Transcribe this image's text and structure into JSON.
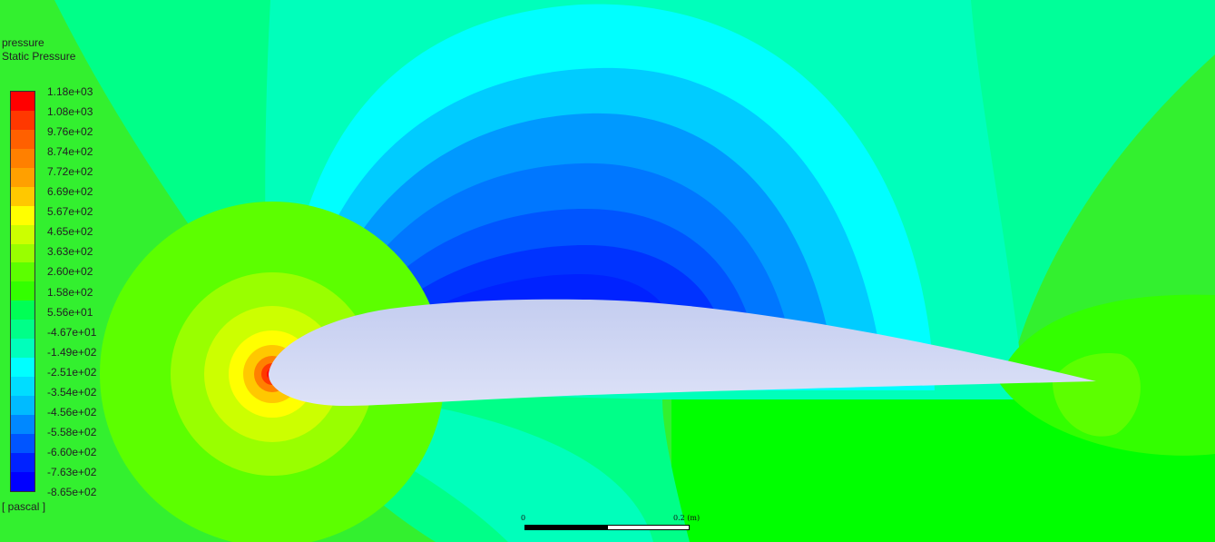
{
  "legend": {
    "variable": "pressure",
    "quantity": "Static Pressure",
    "units": "[ pascal ]",
    "labels": [
      "1.18e+03",
      "1.08e+03",
      "9.76e+02",
      "8.74e+02",
      "7.72e+02",
      "6.69e+02",
      "5.67e+02",
      "4.65e+02",
      "3.63e+02",
      "2.60e+02",
      "1.58e+02",
      "5.56e+01",
      "-4.67e+01",
      "-1.49e+02",
      "-2.51e+02",
      "-3.54e+02",
      "-4.56e+02",
      "-5.58e+02",
      "-6.60e+02",
      "-7.63e+02",
      "-8.65e+02"
    ],
    "band_colors": [
      "#ff0000",
      "#ff3800",
      "#ff6000",
      "#ff8000",
      "#ffa000",
      "#ffc800",
      "#ffff00",
      "#ccff00",
      "#99ff00",
      "#5cff00",
      "#33ff00",
      "#00ff55",
      "#00ff88",
      "#00ffbb",
      "#00ffff",
      "#00ddff",
      "#00bbff",
      "#0088ff",
      "#0055ff",
      "#0022ff",
      "#0000ff"
    ]
  },
  "scale_bar": {
    "start_label": "0",
    "end_label": "0.2 (m)"
  }
}
